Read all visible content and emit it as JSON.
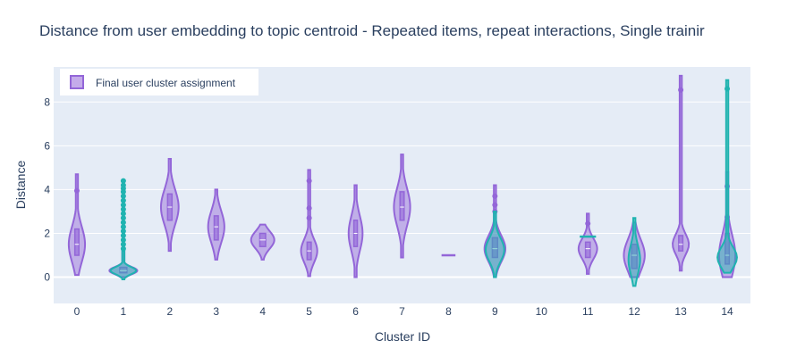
{
  "chart_data": {
    "type": "violin",
    "title": "Distance from user embedding to topic centroid - Repeated items, repeat interactions, Single trainir",
    "xlabel": "Cluster ID",
    "ylabel": "Distance",
    "ylim": [
      -1.2,
      9.6
    ],
    "yticks": [
      0,
      2,
      4,
      6,
      8
    ],
    "grid": true,
    "legend": {
      "position": "top-left",
      "label": "Final user cluster assignment"
    },
    "colors": {
      "primary": "#9366d8",
      "secondary": "#1fb3b0",
      "plot_bg": "#e5ecf6",
      "text": "#2a3f5f"
    },
    "categories": [
      "0",
      "1",
      "2",
      "3",
      "4",
      "5",
      "6",
      "7",
      "8",
      "9",
      "10",
      "11",
      "12",
      "13",
      "14"
    ],
    "series": [
      {
        "name": "Final user cluster assignment",
        "color": "#9366d8",
        "violins": [
          {
            "cat": "0",
            "min": 0.1,
            "max": 4.7,
            "q1": 1.0,
            "median": 1.5,
            "q3": 2.2,
            "width": 0.35,
            "outliers": [
              3.95
            ]
          },
          {
            "cat": "1",
            "min": 0.0,
            "max": 1.2,
            "q1": 0.2,
            "median": 0.3,
            "q3": 0.45,
            "width": 0.6,
            "outliers": []
          },
          {
            "cat": "2",
            "min": 1.2,
            "max": 5.4,
            "q1": 2.6,
            "median": 3.2,
            "q3": 3.8,
            "width": 0.38,
            "outliers": []
          },
          {
            "cat": "3",
            "min": 0.8,
            "max": 4.0,
            "q1": 1.7,
            "median": 2.3,
            "q3": 2.8,
            "width": 0.35,
            "outliers": []
          },
          {
            "cat": "4",
            "min": 0.8,
            "max": 2.4,
            "q1": 1.4,
            "median": 1.7,
            "q3": 2.0,
            "width": 0.5,
            "outliers": []
          },
          {
            "cat": "5",
            "min": 0.05,
            "max": 4.9,
            "q1": 0.8,
            "median": 1.2,
            "q3": 1.6,
            "width": 0.35,
            "outliers": [
              4.4,
              3.15,
              2.7
            ]
          },
          {
            "cat": "6",
            "min": 0.0,
            "max": 4.2,
            "q1": 1.4,
            "median": 2.0,
            "q3": 2.6,
            "width": 0.3,
            "outliers": []
          },
          {
            "cat": "7",
            "min": 0.9,
            "max": 5.6,
            "q1": 2.6,
            "median": 3.2,
            "q3": 3.9,
            "width": 0.35,
            "outliers": []
          },
          {
            "cat": "8",
            "min": 1.0,
            "max": 1.0,
            "q1": 1.0,
            "median": 1.0,
            "q3": 1.0,
            "width": 0.3,
            "outliers": []
          },
          {
            "cat": "9",
            "min": 0.0,
            "max": 4.2,
            "q1": 0.9,
            "median": 1.3,
            "q3": 1.8,
            "width": 0.45,
            "outliers": [
              3.7,
              3.3,
              3.0
            ]
          },
          {
            "cat": "11",
            "min": 0.15,
            "max": 2.9,
            "q1": 0.9,
            "median": 1.3,
            "q3": 1.6,
            "width": 0.4,
            "outliers": [
              2.45
            ]
          },
          {
            "cat": "12",
            "min": 0.0,
            "max": 2.5,
            "q1": 0.4,
            "median": 1.0,
            "q3": 1.5,
            "width": 0.45,
            "outliers": []
          },
          {
            "cat": "13",
            "min": 0.3,
            "max": 9.2,
            "q1": 1.2,
            "median": 1.5,
            "q3": 1.9,
            "width": 0.35,
            "outliers": [
              8.55
            ]
          },
          {
            "cat": "14",
            "min": 0.0,
            "max": 4.8,
            "q1": 0.6,
            "median": 1.0,
            "q3": 2.0,
            "width": 0.35,
            "outliers": [
              4.15,
              2.75
            ]
          }
        ]
      },
      {
        "name": "Repeat interactions",
        "color": "#1fb3b0",
        "violins": [
          {
            "cat": "1",
            "min": -0.1,
            "max": 1.2,
            "q1": 0.2,
            "median": 0.3,
            "q3": 0.45,
            "width": 0.55,
            "outliers": [
              1.3,
              1.5,
              1.7,
              1.9,
              2.1,
              2.3,
              2.5,
              2.7,
              2.9,
              3.1,
              3.3,
              3.5,
              3.7,
              3.9,
              4.05,
              4.2,
              4.4
            ]
          },
          {
            "cat": "9",
            "min": 0.0,
            "max": 3.0,
            "q1": 0.9,
            "median": 1.25,
            "q3": 1.7,
            "width": 0.4,
            "outliers": []
          },
          {
            "cat": "11",
            "min": 1.85,
            "max": 1.85,
            "q1": 1.85,
            "median": 1.85,
            "q3": 1.85,
            "width": 0.35,
            "outliers": []
          },
          {
            "cat": "12",
            "min": -0.4,
            "max": 2.7,
            "q1": 0.3,
            "median": 0.8,
            "q3": 1.3,
            "width": 0.25,
            "outliers": []
          },
          {
            "cat": "14",
            "min": 0.2,
            "max": 9.0,
            "q1": 0.6,
            "median": 0.9,
            "q3": 1.3,
            "width": 0.42,
            "outliers": [
              8.6
            ]
          }
        ]
      }
    ]
  }
}
